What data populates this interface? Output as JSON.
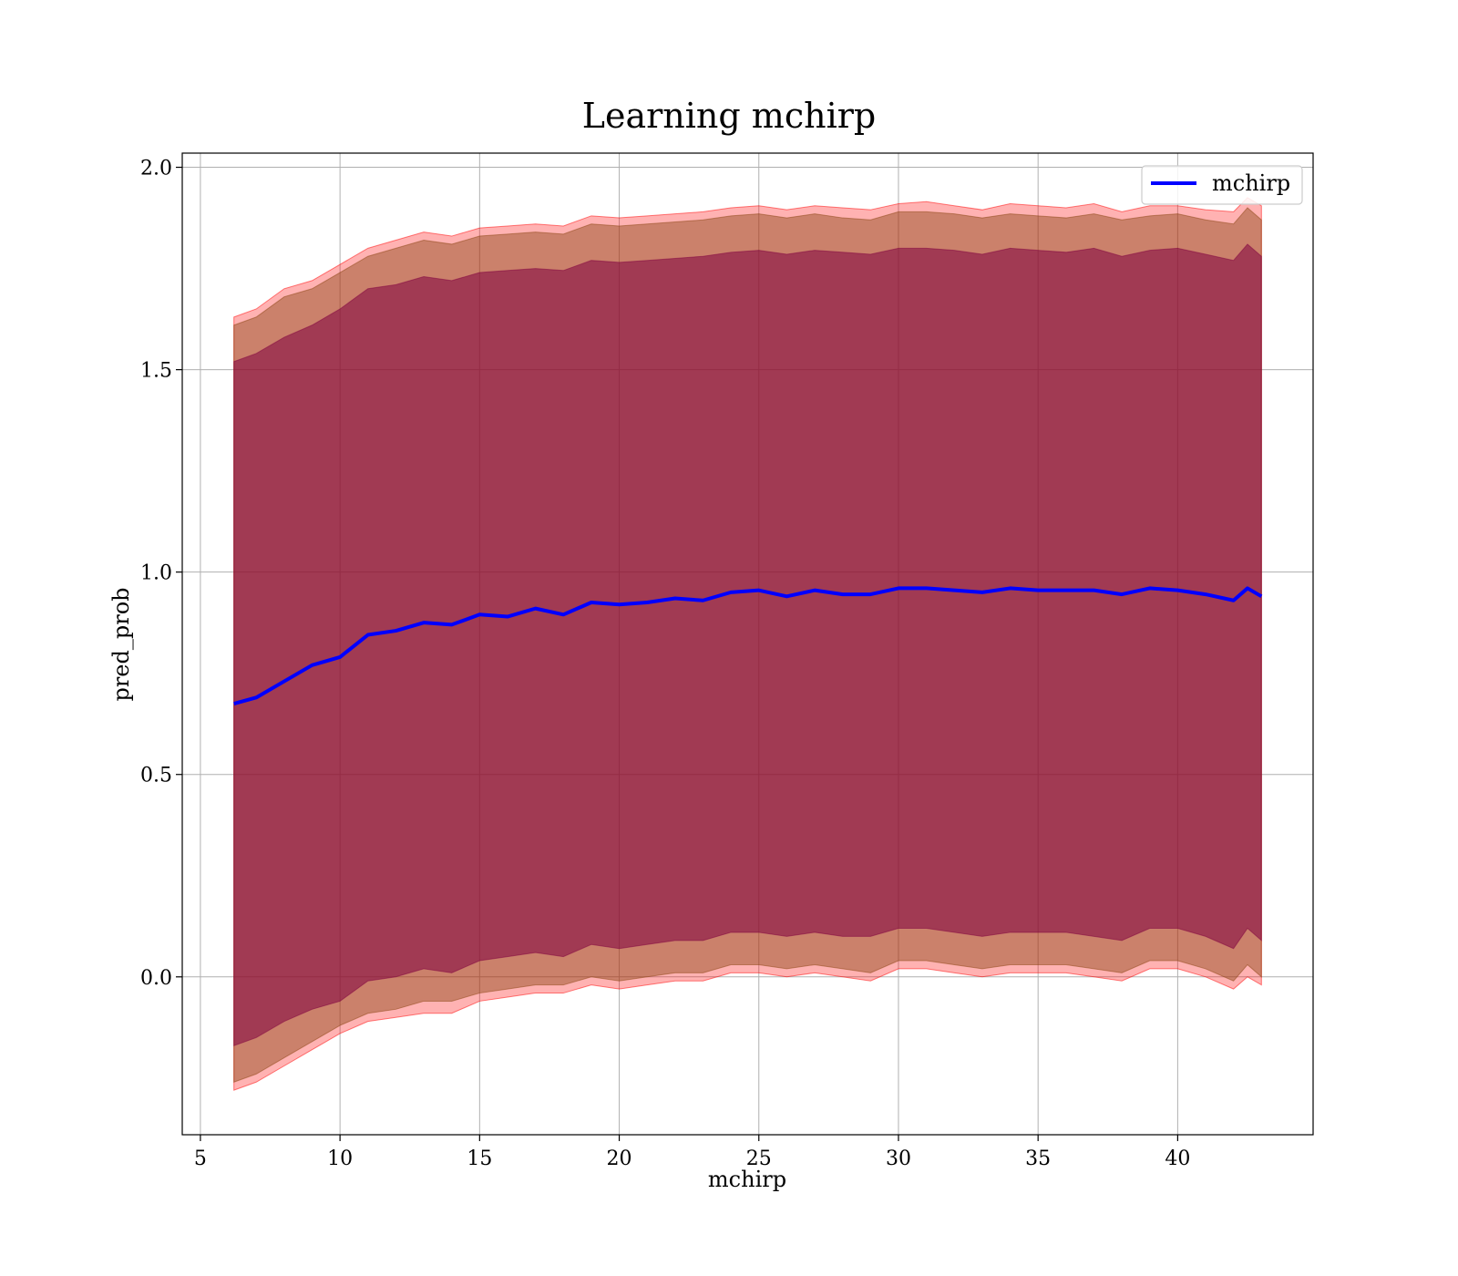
{
  "chart_data": {
    "type": "line",
    "title": "Learning mchirp",
    "xlabel": "mchirp",
    "ylabel": "pred_prob",
    "xlim": [
      4.35,
      44.85
    ],
    "ylim": [
      -0.39,
      2.035
    ],
    "xticks": [
      5,
      10,
      15,
      20,
      25,
      30,
      35,
      40
    ],
    "yticks": [
      0.0,
      0.5,
      1.0,
      1.5,
      2.0
    ],
    "xtick_labels": [
      "5",
      "10",
      "15",
      "20",
      "25",
      "30",
      "35",
      "40"
    ],
    "ytick_labels": [
      "0.0",
      "0.5",
      "1.0",
      "1.5",
      "2.0"
    ],
    "grid": true,
    "legend_position": "upper right",
    "legend": [
      "mchirp"
    ],
    "colors": {
      "line": "#0000ff",
      "band_outer": "#ff0000",
      "band_middle": "#8b4513",
      "band_inner": "#800040",
      "grid": "#b0b0b0"
    },
    "x": [
      6.2,
      7,
      8,
      9,
      10,
      11,
      12,
      13,
      14,
      15,
      16,
      17,
      18,
      19,
      20,
      21,
      22,
      23,
      24,
      25,
      26,
      27,
      28,
      29,
      30,
      31,
      32,
      33,
      34,
      35,
      36,
      37,
      38,
      39,
      40,
      41,
      42,
      42.5,
      43
    ],
    "series": [
      {
        "name": "mchirp",
        "values": [
          0.675,
          0.69,
          0.73,
          0.77,
          0.79,
          0.845,
          0.855,
          0.875,
          0.87,
          0.895,
          0.89,
          0.91,
          0.895,
          0.925,
          0.92,
          0.925,
          0.935,
          0.93,
          0.95,
          0.955,
          0.94,
          0.955,
          0.945,
          0.945,
          0.96,
          0.96,
          0.955,
          0.95,
          0.96,
          0.955,
          0.955,
          0.955,
          0.945,
          0.96,
          0.955,
          0.945,
          0.93,
          0.96,
          0.94
        ]
      }
    ],
    "bands": [
      {
        "upper": [
          1.63,
          1.65,
          1.7,
          1.72,
          1.76,
          1.8,
          1.82,
          1.84,
          1.83,
          1.85,
          1.855,
          1.86,
          1.855,
          1.88,
          1.875,
          1.88,
          1.885,
          1.89,
          1.9,
          1.905,
          1.895,
          1.905,
          1.9,
          1.895,
          1.91,
          1.915,
          1.905,
          1.895,
          1.91,
          1.905,
          1.9,
          1.91,
          1.89,
          1.905,
          1.905,
          1.895,
          1.89,
          1.925,
          1.905
        ],
        "lower": [
          -0.28,
          -0.26,
          -0.22,
          -0.18,
          -0.14,
          -0.11,
          -0.1,
          -0.09,
          -0.09,
          -0.06,
          -0.05,
          -0.04,
          -0.04,
          -0.02,
          -0.03,
          -0.02,
          -0.01,
          -0.01,
          0.01,
          0.01,
          0.0,
          0.01,
          0.0,
          -0.01,
          0.02,
          0.02,
          0.01,
          0.0,
          0.01,
          0.01,
          0.01,
          0.0,
          -0.01,
          0.02,
          0.02,
          0.0,
          -0.03,
          0.0,
          -0.02
        ]
      },
      {
        "upper": [
          1.61,
          1.63,
          1.68,
          1.7,
          1.74,
          1.78,
          1.8,
          1.82,
          1.81,
          1.83,
          1.835,
          1.84,
          1.835,
          1.86,
          1.855,
          1.86,
          1.865,
          1.87,
          1.88,
          1.885,
          1.875,
          1.885,
          1.875,
          1.87,
          1.89,
          1.89,
          1.885,
          1.875,
          1.885,
          1.88,
          1.875,
          1.885,
          1.87,
          1.88,
          1.885,
          1.87,
          1.86,
          1.9,
          1.87
        ],
        "lower": [
          -0.26,
          -0.24,
          -0.2,
          -0.16,
          -0.12,
          -0.09,
          -0.08,
          -0.06,
          -0.06,
          -0.04,
          -0.03,
          -0.02,
          -0.02,
          0.0,
          -0.01,
          0.0,
          0.01,
          0.01,
          0.03,
          0.03,
          0.02,
          0.03,
          0.02,
          0.01,
          0.04,
          0.04,
          0.03,
          0.02,
          0.03,
          0.03,
          0.03,
          0.02,
          0.01,
          0.04,
          0.04,
          0.02,
          -0.01,
          0.03,
          0.0
        ]
      },
      {
        "upper": [
          1.52,
          1.54,
          1.58,
          1.61,
          1.65,
          1.7,
          1.71,
          1.73,
          1.72,
          1.74,
          1.745,
          1.75,
          1.745,
          1.77,
          1.765,
          1.77,
          1.775,
          1.78,
          1.79,
          1.795,
          1.785,
          1.795,
          1.79,
          1.785,
          1.8,
          1.8,
          1.795,
          1.785,
          1.8,
          1.795,
          1.79,
          1.8,
          1.78,
          1.795,
          1.8,
          1.785,
          1.77,
          1.81,
          1.78
        ],
        "lower": [
          -0.17,
          -0.15,
          -0.11,
          -0.08,
          -0.06,
          -0.01,
          0.0,
          0.02,
          0.01,
          0.04,
          0.05,
          0.06,
          0.05,
          0.08,
          0.07,
          0.08,
          0.09,
          0.09,
          0.11,
          0.11,
          0.1,
          0.11,
          0.1,
          0.1,
          0.12,
          0.12,
          0.11,
          0.1,
          0.11,
          0.11,
          0.11,
          0.1,
          0.09,
          0.12,
          0.12,
          0.1,
          0.07,
          0.12,
          0.09
        ]
      }
    ]
  }
}
